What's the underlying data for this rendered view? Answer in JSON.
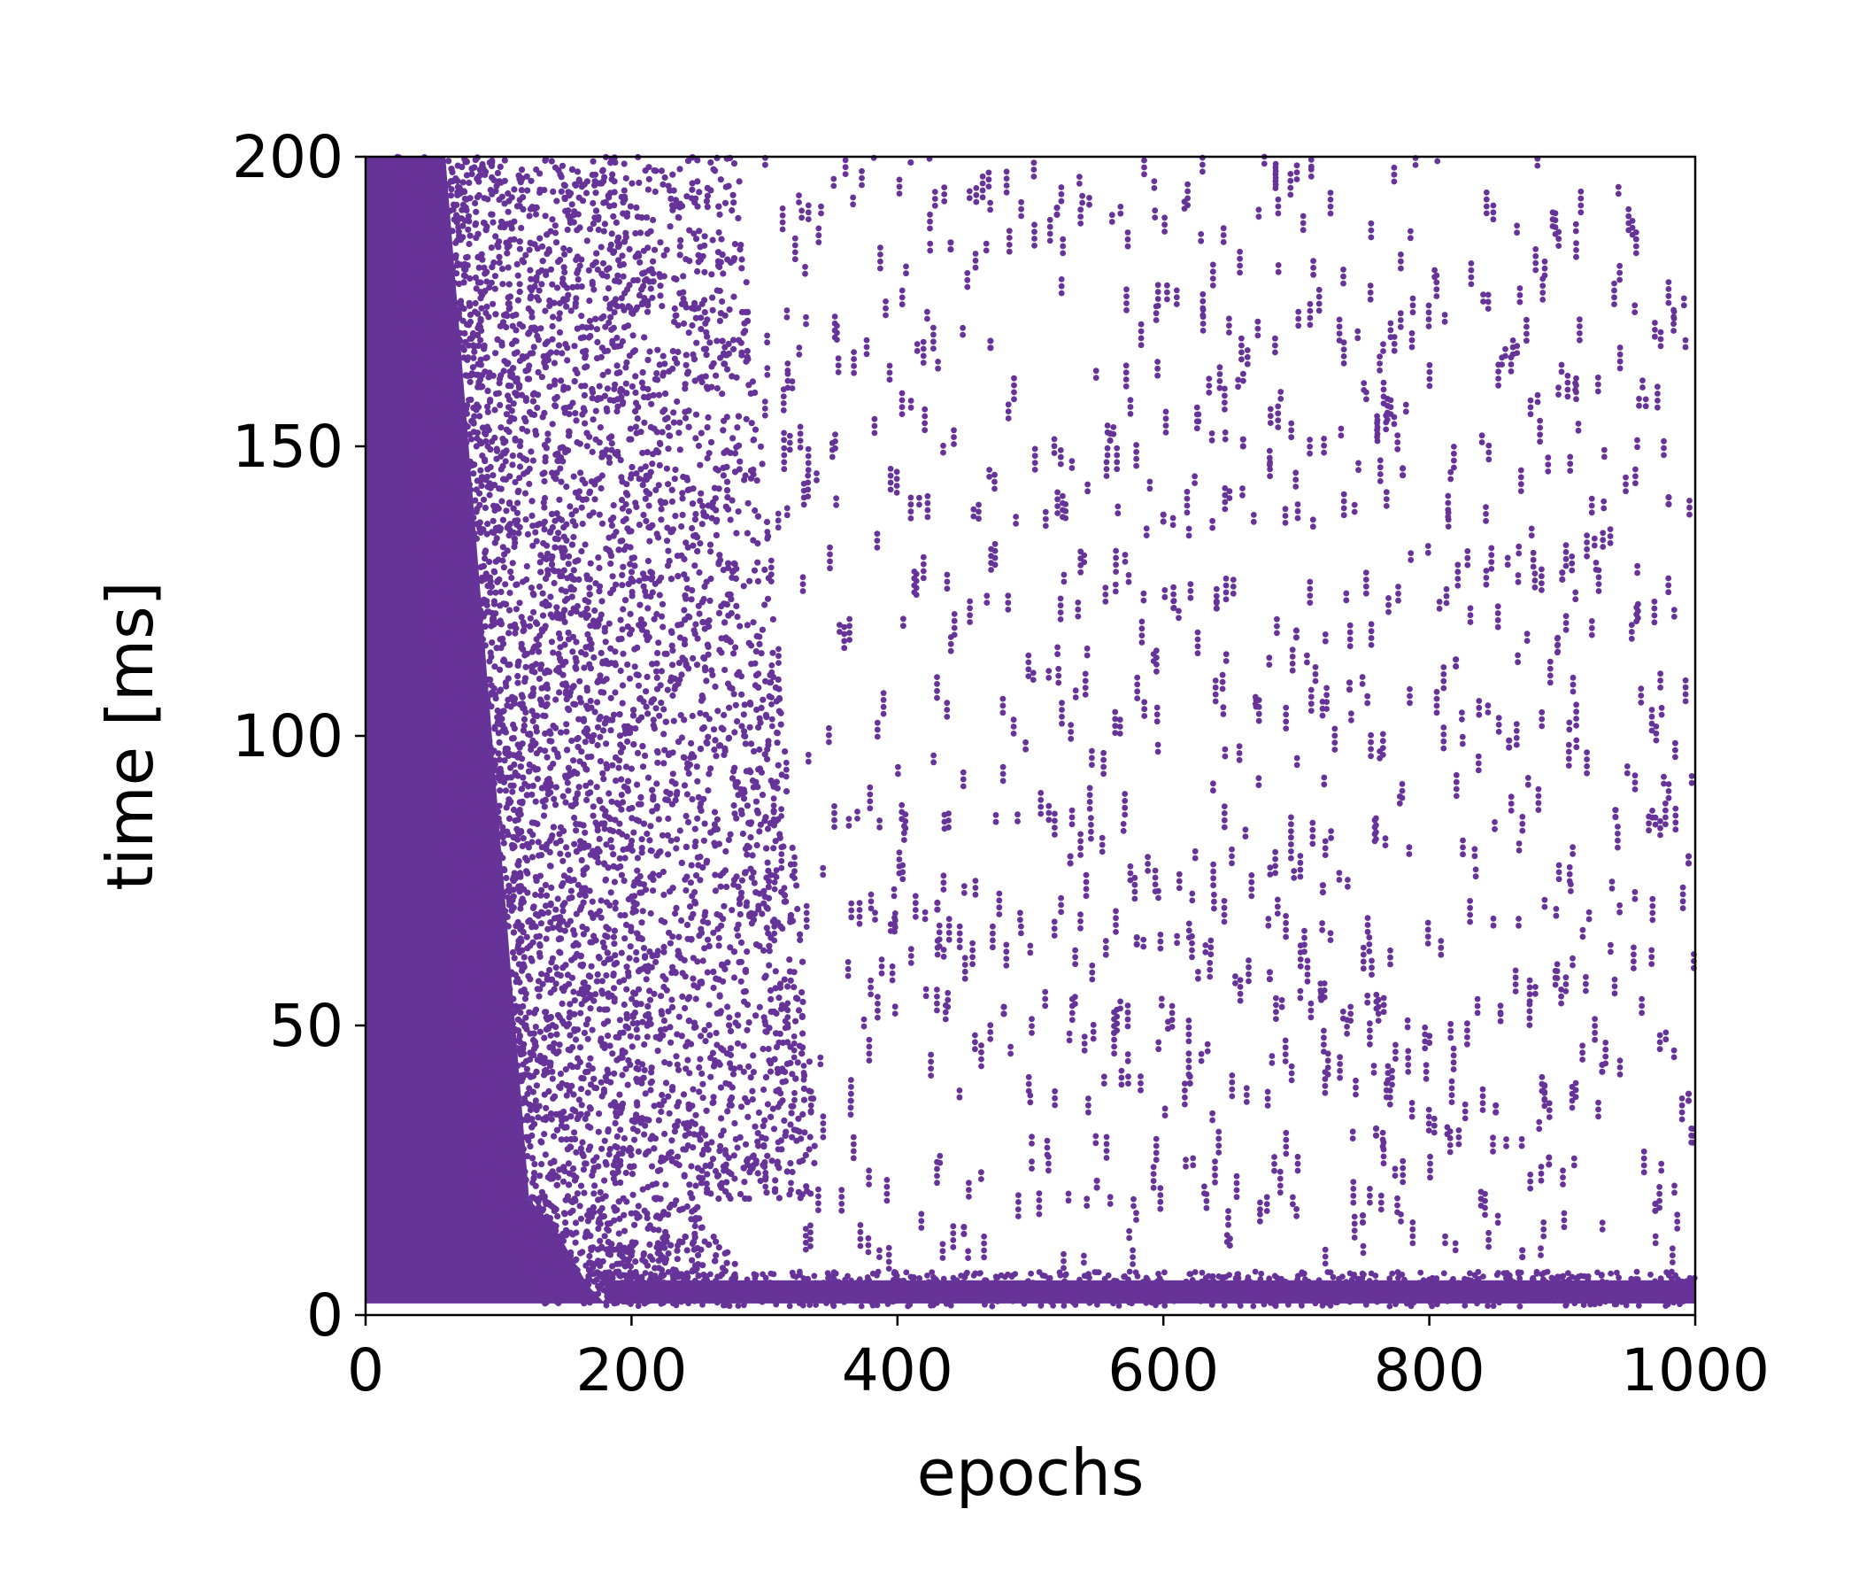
{
  "chart_data": {
    "type": "scatter",
    "title": "",
    "xlabel": "epochs",
    "ylabel": "time [ms]",
    "xlim": [
      0,
      1000
    ],
    "ylim": [
      0,
      200
    ],
    "x_ticks": [
      0,
      200,
      400,
      600,
      800,
      1000
    ],
    "y_ticks": [
      0,
      50,
      100,
      150,
      200
    ],
    "x_tick_labels": [
      "0",
      "200",
      "400",
      "600",
      "800",
      "1000"
    ],
    "y_tick_labels": [
      "0",
      "50",
      "100",
      "150",
      "200"
    ],
    "grid": false,
    "legend": "none",
    "series": [
      {
        "color": "#663399",
        "description_of_distribution": "dense band of spike times for early epochs (0–150) covering 2–200 ms, thinning out until ~300 epochs; afterwards a dense band at 2–6 ms plus sparse scattered short vertical clusters across 0–200 ms up to epoch 1000",
        "dense_region": {
          "x_range": [
            0,
            150
          ],
          "y_range": [
            2,
            200
          ]
        },
        "transition_region": {
          "x_range": [
            100,
            320
          ],
          "y_range": [
            2,
            200
          ]
        },
        "baseline_band": {
          "x_range": [
            180,
            1000
          ],
          "y_range": [
            2,
            6
          ]
        },
        "sample_points": [
          {
            "x": 410,
            "y": 199
          },
          {
            "x": 440,
            "y": 184
          },
          {
            "x": 470,
            "y": 167
          },
          {
            "x": 520,
            "y": 190
          },
          {
            "x": 560,
            "y": 151
          },
          {
            "x": 600,
            "y": 137
          },
          {
            "x": 640,
            "y": 122
          },
          {
            "x": 660,
            "y": 150
          },
          {
            "x": 700,
            "y": 117
          },
          {
            "x": 740,
            "y": 108
          },
          {
            "x": 780,
            "y": 145
          },
          {
            "x": 820,
            "y": 112
          },
          {
            "x": 860,
            "y": 98
          },
          {
            "x": 900,
            "y": 127
          },
          {
            "x": 940,
            "y": 86
          },
          {
            "x": 980,
            "y": 140
          },
          {
            "x": 430,
            "y": 70
          },
          {
            "x": 480,
            "y": 52
          },
          {
            "x": 530,
            "y": 78
          },
          {
            "x": 580,
            "y": 64
          },
          {
            "x": 620,
            "y": 40
          },
          {
            "x": 680,
            "y": 58
          },
          {
            "x": 720,
            "y": 73
          },
          {
            "x": 760,
            "y": 31
          },
          {
            "x": 800,
            "y": 47
          },
          {
            "x": 850,
            "y": 35
          },
          {
            "x": 890,
            "y": 26
          },
          {
            "x": 930,
            "y": 42
          },
          {
            "x": 970,
            "y": 18
          },
          {
            "x": 995,
            "y": 37
          },
          {
            "x": 450,
            "y": 14
          },
          {
            "x": 550,
            "y": 22
          },
          {
            "x": 650,
            "y": 12
          },
          {
            "x": 750,
            "y": 16
          },
          {
            "x": 870,
            "y": 10
          },
          {
            "x": 995,
            "y": 78
          }
        ]
      }
    ]
  }
}
